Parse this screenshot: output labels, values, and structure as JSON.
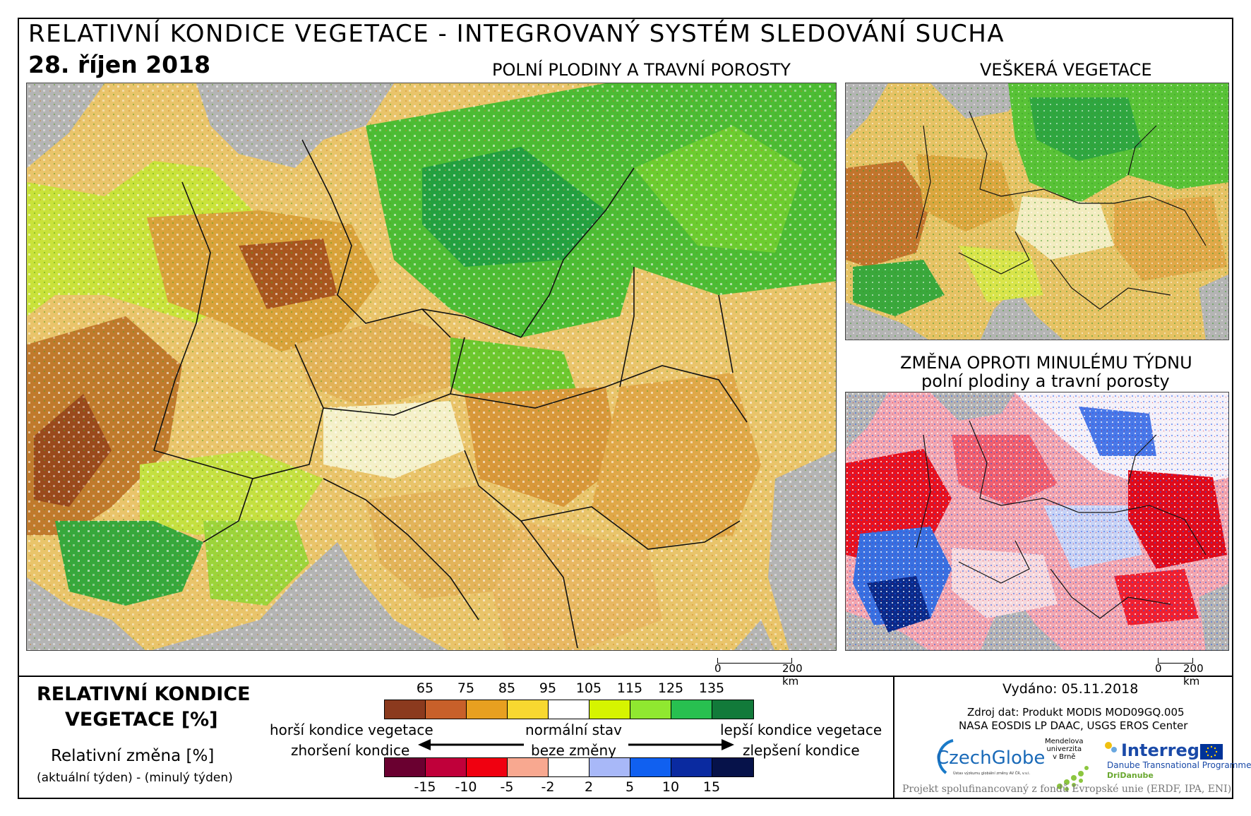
{
  "header": {
    "title": "RELATIVNÍ KONDICE VEGETACE - INTEGROVANÝ SYSTÉM SLEDOVÁNÍ SUCHA",
    "date": "28. říjen 2018"
  },
  "maps": {
    "main": {
      "label": "POLNÍ PLODINY A TRAVNÍ POROSTY",
      "scale_start": "0",
      "scale_end": "200 km"
    },
    "all_vegetation": {
      "label": "VEŠKERÁ VEGETACE",
      "scale_start": "0",
      "scale_end": "200 km"
    },
    "weekly_change": {
      "label_line1": "ZMĚNA OPROTI MINULÉMU TÝDNU",
      "label_line2": "polní plodiny a travní porosty"
    }
  },
  "legend": {
    "title_line1": "RELATIVNÍ KONDICE",
    "title_line2": "VEGETACE [%]",
    "change_title": "Relativní změna [%]",
    "change_sub": "(aktuální týden) - (minulý týden)",
    "condition_ticks": [
      "65",
      "75",
      "85",
      "95",
      "105",
      "115",
      "125",
      "135"
    ],
    "condition_colors": [
      "#8b3a1e",
      "#c8602a",
      "#e8a020",
      "#f8d830",
      "#ffffff",
      "#d6f400",
      "#90e830",
      "#28c050",
      "#127a3a"
    ],
    "change_ticks": [
      "-15",
      "-10",
      "-5",
      "-2",
      "2",
      "5",
      "10",
      "15"
    ],
    "change_colors": [
      "#6a0030",
      "#c0003a",
      "#f00010",
      "#f8a890",
      "#ffffff",
      "#a8b8f8",
      "#1060f0",
      "#0a2aa0",
      "#06124a"
    ],
    "worse_condition": "horší kondice vegetace",
    "normal_state": "normální stav",
    "better_condition": "lepší kondice vegetace",
    "worsening": "zhoršení kondice",
    "no_change": "beze změny",
    "improvement": "zlepšení kondice"
  },
  "info": {
    "issued": "Vydáno: 05.11.2018",
    "source_line1": "Zdroj dat: Produkt MODIS MOD09GQ.005",
    "source_line2": "NASA EOSDIS LP DAAC, USGS EROS Center",
    "czechglobe_name": "CzechGlobe",
    "czechglobe_tagline": "Ústav výzkumu globální změny AV ČR, v.v.i.",
    "mendel_line1": "Mendelova",
    "mendel_line2": "univerzita",
    "mendel_line3": "v Brně",
    "interreg_name": "Interreg",
    "interreg_program": "Danube Transnational Programme",
    "interreg_project": "DriDanube",
    "eu_funding": "Projekt spolufinancovaný z fondů Evropské unie (ERDF, IPA, ENI)"
  }
}
